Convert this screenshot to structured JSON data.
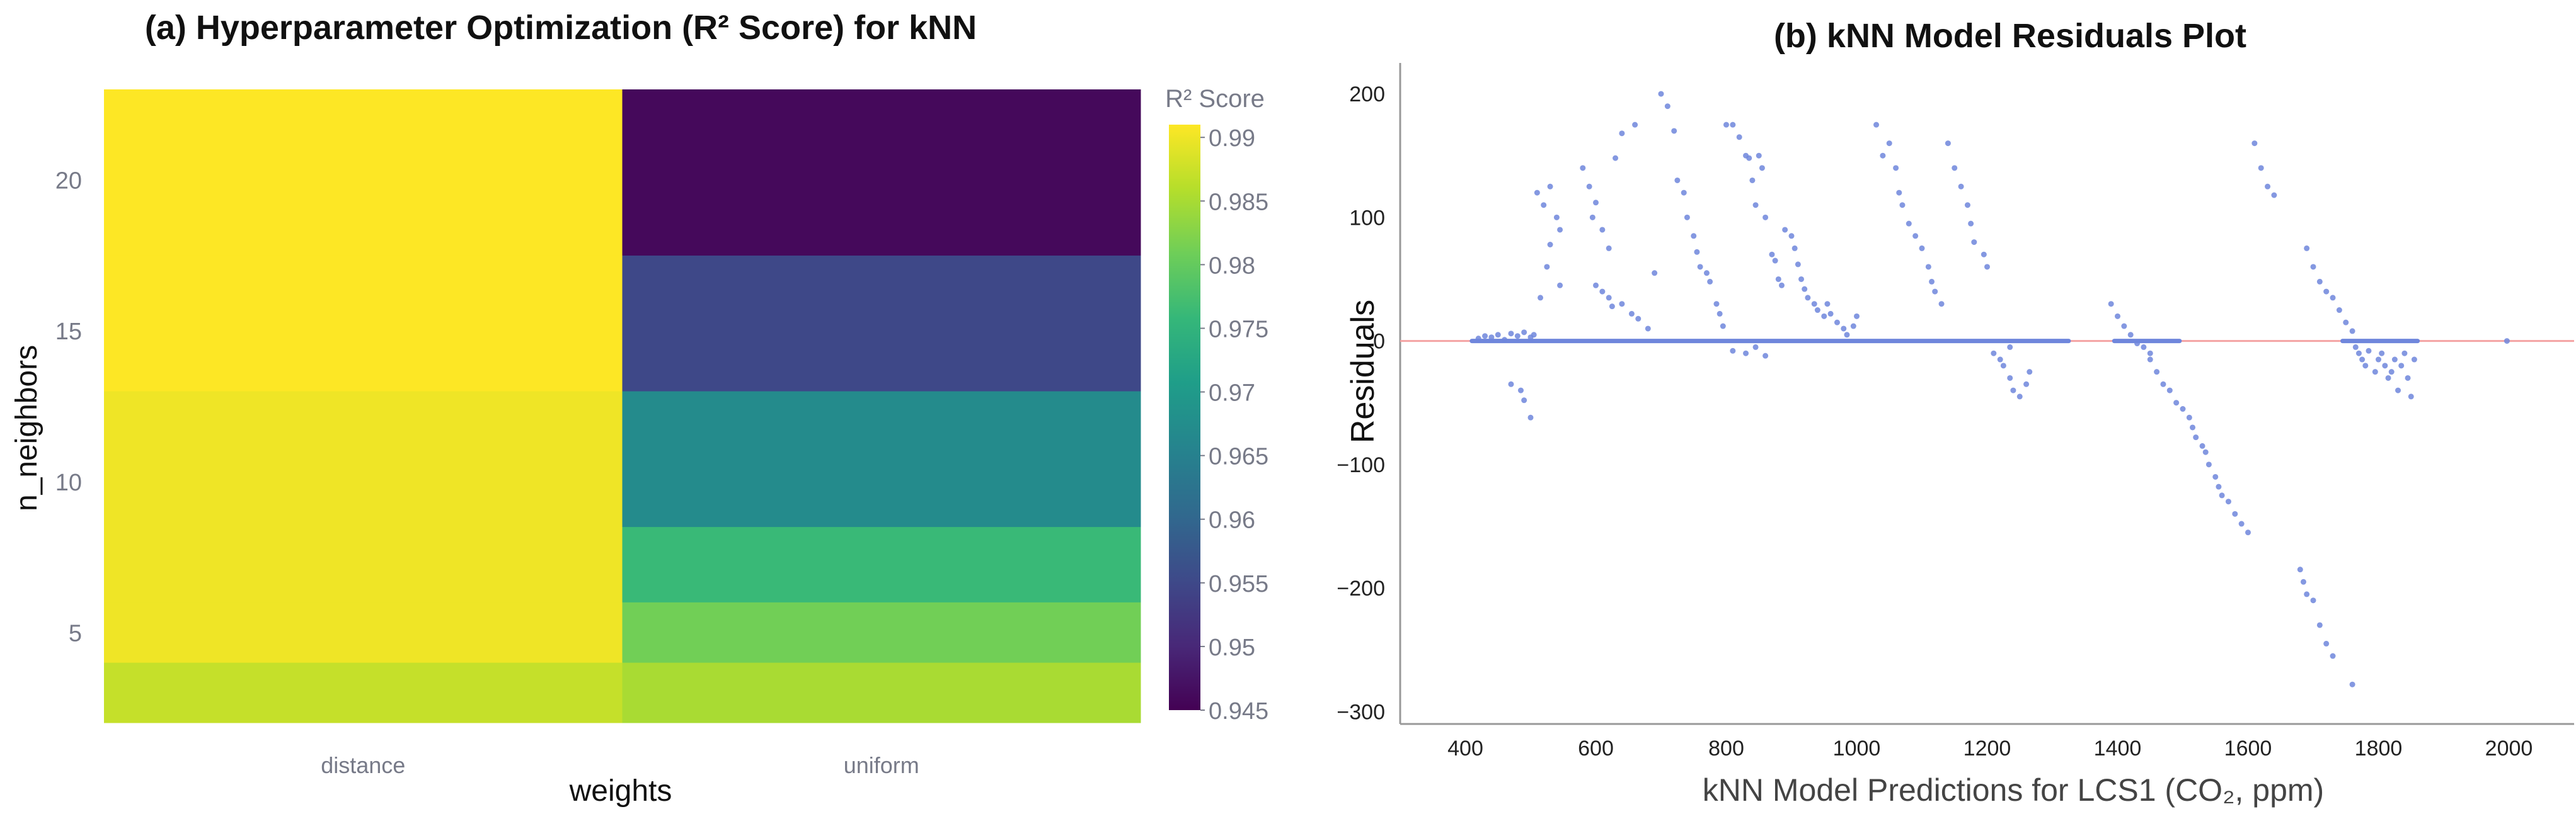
{
  "chart_data": [
    {
      "type": "heatmap",
      "title": "(a) Hyperparameter Optimization (R² Score) for kNN",
      "xlabel": "weights",
      "ylabel": "n_neighbors",
      "x_categories": [
        "distance",
        "uniform"
      ],
      "y_ticks": [
        5,
        10,
        15,
        20
      ],
      "rows": [
        {
          "n_neighbors": 3,
          "values": [
            0.987,
            0.985
          ]
        },
        {
          "n_neighbors": 5,
          "values": [
            0.99,
            0.981
          ]
        },
        {
          "n_neighbors": 7,
          "values": [
            0.99,
            0.976
          ]
        },
        {
          "n_neighbors": 10,
          "values": [
            0.99,
            0.967
          ]
        },
        {
          "n_neighbors": 15,
          "values": [
            0.991,
            0.955
          ]
        },
        {
          "n_neighbors": 20,
          "values": [
            0.991,
            0.946
          ]
        }
      ],
      "colorbar": {
        "label": "R² Score",
        "range": [
          0.945,
          0.991
        ],
        "ticks": [
          0.945,
          0.95,
          0.955,
          0.96,
          0.965,
          0.97,
          0.975,
          0.98,
          0.985,
          0.99
        ],
        "tick_labels": [
          "0.945",
          "0.95",
          "0.955",
          "0.96",
          "0.965",
          "0.97",
          "0.975",
          "0.98",
          "0.985",
          "0.99"
        ],
        "colormap": "viridis"
      }
    },
    {
      "type": "scatter",
      "title": "(b) kNN Model Residuals Plot",
      "xlabel": "kNN  Model Predictions for LCS1 (CO₂, ppm)",
      "ylabel": "Residuals",
      "xlim": [
        300,
        2100
      ],
      "ylim": [
        -310,
        225
      ],
      "x_ticks": [
        400,
        600,
        800,
        1000,
        1200,
        1400,
        1600,
        1800,
        2000
      ],
      "y_ticks": [
        -300,
        -200,
        -100,
        0,
        100,
        200
      ],
      "y_tick_labels": [
        "−300",
        "−200",
        "−100",
        "0",
        "100",
        "200"
      ],
      "reference_line": {
        "y": 0,
        "color": "#f4a3a3"
      },
      "point_color": "#6f86dc",
      "zero_band": [
        [
          410,
          1325
        ],
        [
          1395,
          1495
        ],
        [
          1745,
          1860
        ]
      ],
      "points": [
        [
          420,
          2
        ],
        [
          430,
          4
        ],
        [
          440,
          3
        ],
        [
          450,
          5
        ],
        [
          460,
          1
        ],
        [
          470,
          6
        ],
        [
          480,
          4
        ],
        [
          490,
          7
        ],
        [
          500,
          3
        ],
        [
          505,
          5
        ],
        [
          470,
          -35
        ],
        [
          485,
          -40
        ],
        [
          490,
          -48
        ],
        [
          500,
          -62
        ],
        [
          510,
          120
        ],
        [
          520,
          110
        ],
        [
          530,
          125
        ],
        [
          540,
          100
        ],
        [
          545,
          90
        ],
        [
          530,
          78
        ],
        [
          525,
          60
        ],
        [
          545,
          45
        ],
        [
          515,
          35
        ],
        [
          580,
          140
        ],
        [
          590,
          125
        ],
        [
          600,
          112
        ],
        [
          595,
          100
        ],
        [
          610,
          90
        ],
        [
          620,
          75
        ],
        [
          630,
          148
        ],
        [
          640,
          168
        ],
        [
          660,
          175
        ],
        [
          600,
          45
        ],
        [
          610,
          40
        ],
        [
          620,
          35
        ],
        [
          625,
          28
        ],
        [
          640,
          30
        ],
        [
          655,
          22
        ],
        [
          665,
          18
        ],
        [
          680,
          10
        ],
        [
          690,
          55
        ],
        [
          700,
          200
        ],
        [
          710,
          190
        ],
        [
          720,
          170
        ],
        [
          725,
          130
        ],
        [
          735,
          120
        ],
        [
          740,
          100
        ],
        [
          750,
          85
        ],
        [
          755,
          72
        ],
        [
          760,
          60
        ],
        [
          770,
          55
        ],
        [
          775,
          48
        ],
        [
          785,
          30
        ],
        [
          790,
          22
        ],
        [
          795,
          12
        ],
        [
          800,
          175
        ],
        [
          810,
          175
        ],
        [
          820,
          165
        ],
        [
          830,
          150
        ],
        [
          835,
          148
        ],
        [
          840,
          130
        ],
        [
          845,
          110
        ],
        [
          850,
          150
        ],
        [
          855,
          140
        ],
        [
          860,
          100
        ],
        [
          870,
          70
        ],
        [
          875,
          65
        ],
        [
          880,
          50
        ],
        [
          885,
          45
        ],
        [
          890,
          90
        ],
        [
          900,
          85
        ],
        [
          905,
          75
        ],
        [
          910,
          62
        ],
        [
          915,
          50
        ],
        [
          920,
          42
        ],
        [
          925,
          35
        ],
        [
          935,
          30
        ],
        [
          940,
          25
        ],
        [
          950,
          20
        ],
        [
          955,
          30
        ],
        [
          960,
          22
        ],
        [
          970,
          15
        ],
        [
          980,
          10
        ],
        [
          985,
          5
        ],
        [
          995,
          12
        ],
        [
          1000,
          20
        ],
        [
          810,
          -8
        ],
        [
          830,
          -10
        ],
        [
          845,
          -5
        ],
        [
          860,
          -12
        ],
        [
          1030,
          175
        ],
        [
          1040,
          150
        ],
        [
          1050,
          160
        ],
        [
          1060,
          140
        ],
        [
          1065,
          120
        ],
        [
          1070,
          110
        ],
        [
          1080,
          95
        ],
        [
          1090,
          85
        ],
        [
          1100,
          75
        ],
        [
          1110,
          60
        ],
        [
          1115,
          48
        ],
        [
          1120,
          40
        ],
        [
          1130,
          30
        ],
        [
          1140,
          160
        ],
        [
          1150,
          140
        ],
        [
          1160,
          125
        ],
        [
          1170,
          110
        ],
        [
          1175,
          95
        ],
        [
          1180,
          80
        ],
        [
          1195,
          70
        ],
        [
          1200,
          60
        ],
        [
          1210,
          -10
        ],
        [
          1220,
          -15
        ],
        [
          1225,
          -20
        ],
        [
          1235,
          -30
        ],
        [
          1240,
          -40
        ],
        [
          1250,
          -45
        ],
        [
          1260,
          -35
        ],
        [
          1265,
          -25
        ],
        [
          1235,
          -5
        ],
        [
          1390,
          30
        ],
        [
          1400,
          20
        ],
        [
          1410,
          12
        ],
        [
          1420,
          5
        ],
        [
          1430,
          -2
        ],
        [
          1440,
          -5
        ],
        [
          1450,
          -10
        ],
        [
          1450,
          -15
        ],
        [
          1460,
          -25
        ],
        [
          1470,
          -35
        ],
        [
          1480,
          -40
        ],
        [
          1490,
          -50
        ],
        [
          1500,
          -55
        ],
        [
          1510,
          -62
        ],
        [
          1515,
          -70
        ],
        [
          1520,
          -78
        ],
        [
          1530,
          -85
        ],
        [
          1535,
          -90
        ],
        [
          1540,
          -100
        ],
        [
          1550,
          -110
        ],
        [
          1555,
          -118
        ],
        [
          1560,
          -125
        ],
        [
          1570,
          -130
        ],
        [
          1580,
          -140
        ],
        [
          1590,
          -148
        ],
        [
          1600,
          -155
        ],
        [
          1610,
          160
        ],
        [
          1620,
          140
        ],
        [
          1630,
          125
        ],
        [
          1640,
          118
        ],
        [
          1680,
          -185
        ],
        [
          1685,
          -195
        ],
        [
          1690,
          -205
        ],
        [
          1700,
          -210
        ],
        [
          1710,
          -230
        ],
        [
          1720,
          -245
        ],
        [
          1730,
          -255
        ],
        [
          1760,
          -278
        ],
        [
          1690,
          75
        ],
        [
          1700,
          60
        ],
        [
          1710,
          48
        ],
        [
          1720,
          40
        ],
        [
          1730,
          35
        ],
        [
          1740,
          25
        ],
        [
          1750,
          15
        ],
        [
          1760,
          8
        ],
        [
          1765,
          -5
        ],
        [
          1770,
          -10
        ],
        [
          1775,
          -15
        ],
        [
          1780,
          -20
        ],
        [
          1785,
          -8
        ],
        [
          1795,
          -25
        ],
        [
          1800,
          -15
        ],
        [
          1805,
          -10
        ],
        [
          1810,
          -20
        ],
        [
          1815,
          -30
        ],
        [
          1820,
          -25
        ],
        [
          1825,
          -15
        ],
        [
          1830,
          -40
        ],
        [
          1835,
          -20
        ],
        [
          1840,
          -10
        ],
        [
          1845,
          -30
        ],
        [
          1850,
          -45
        ],
        [
          1855,
          -15
        ],
        [
          1997,
          0
        ]
      ]
    }
  ]
}
